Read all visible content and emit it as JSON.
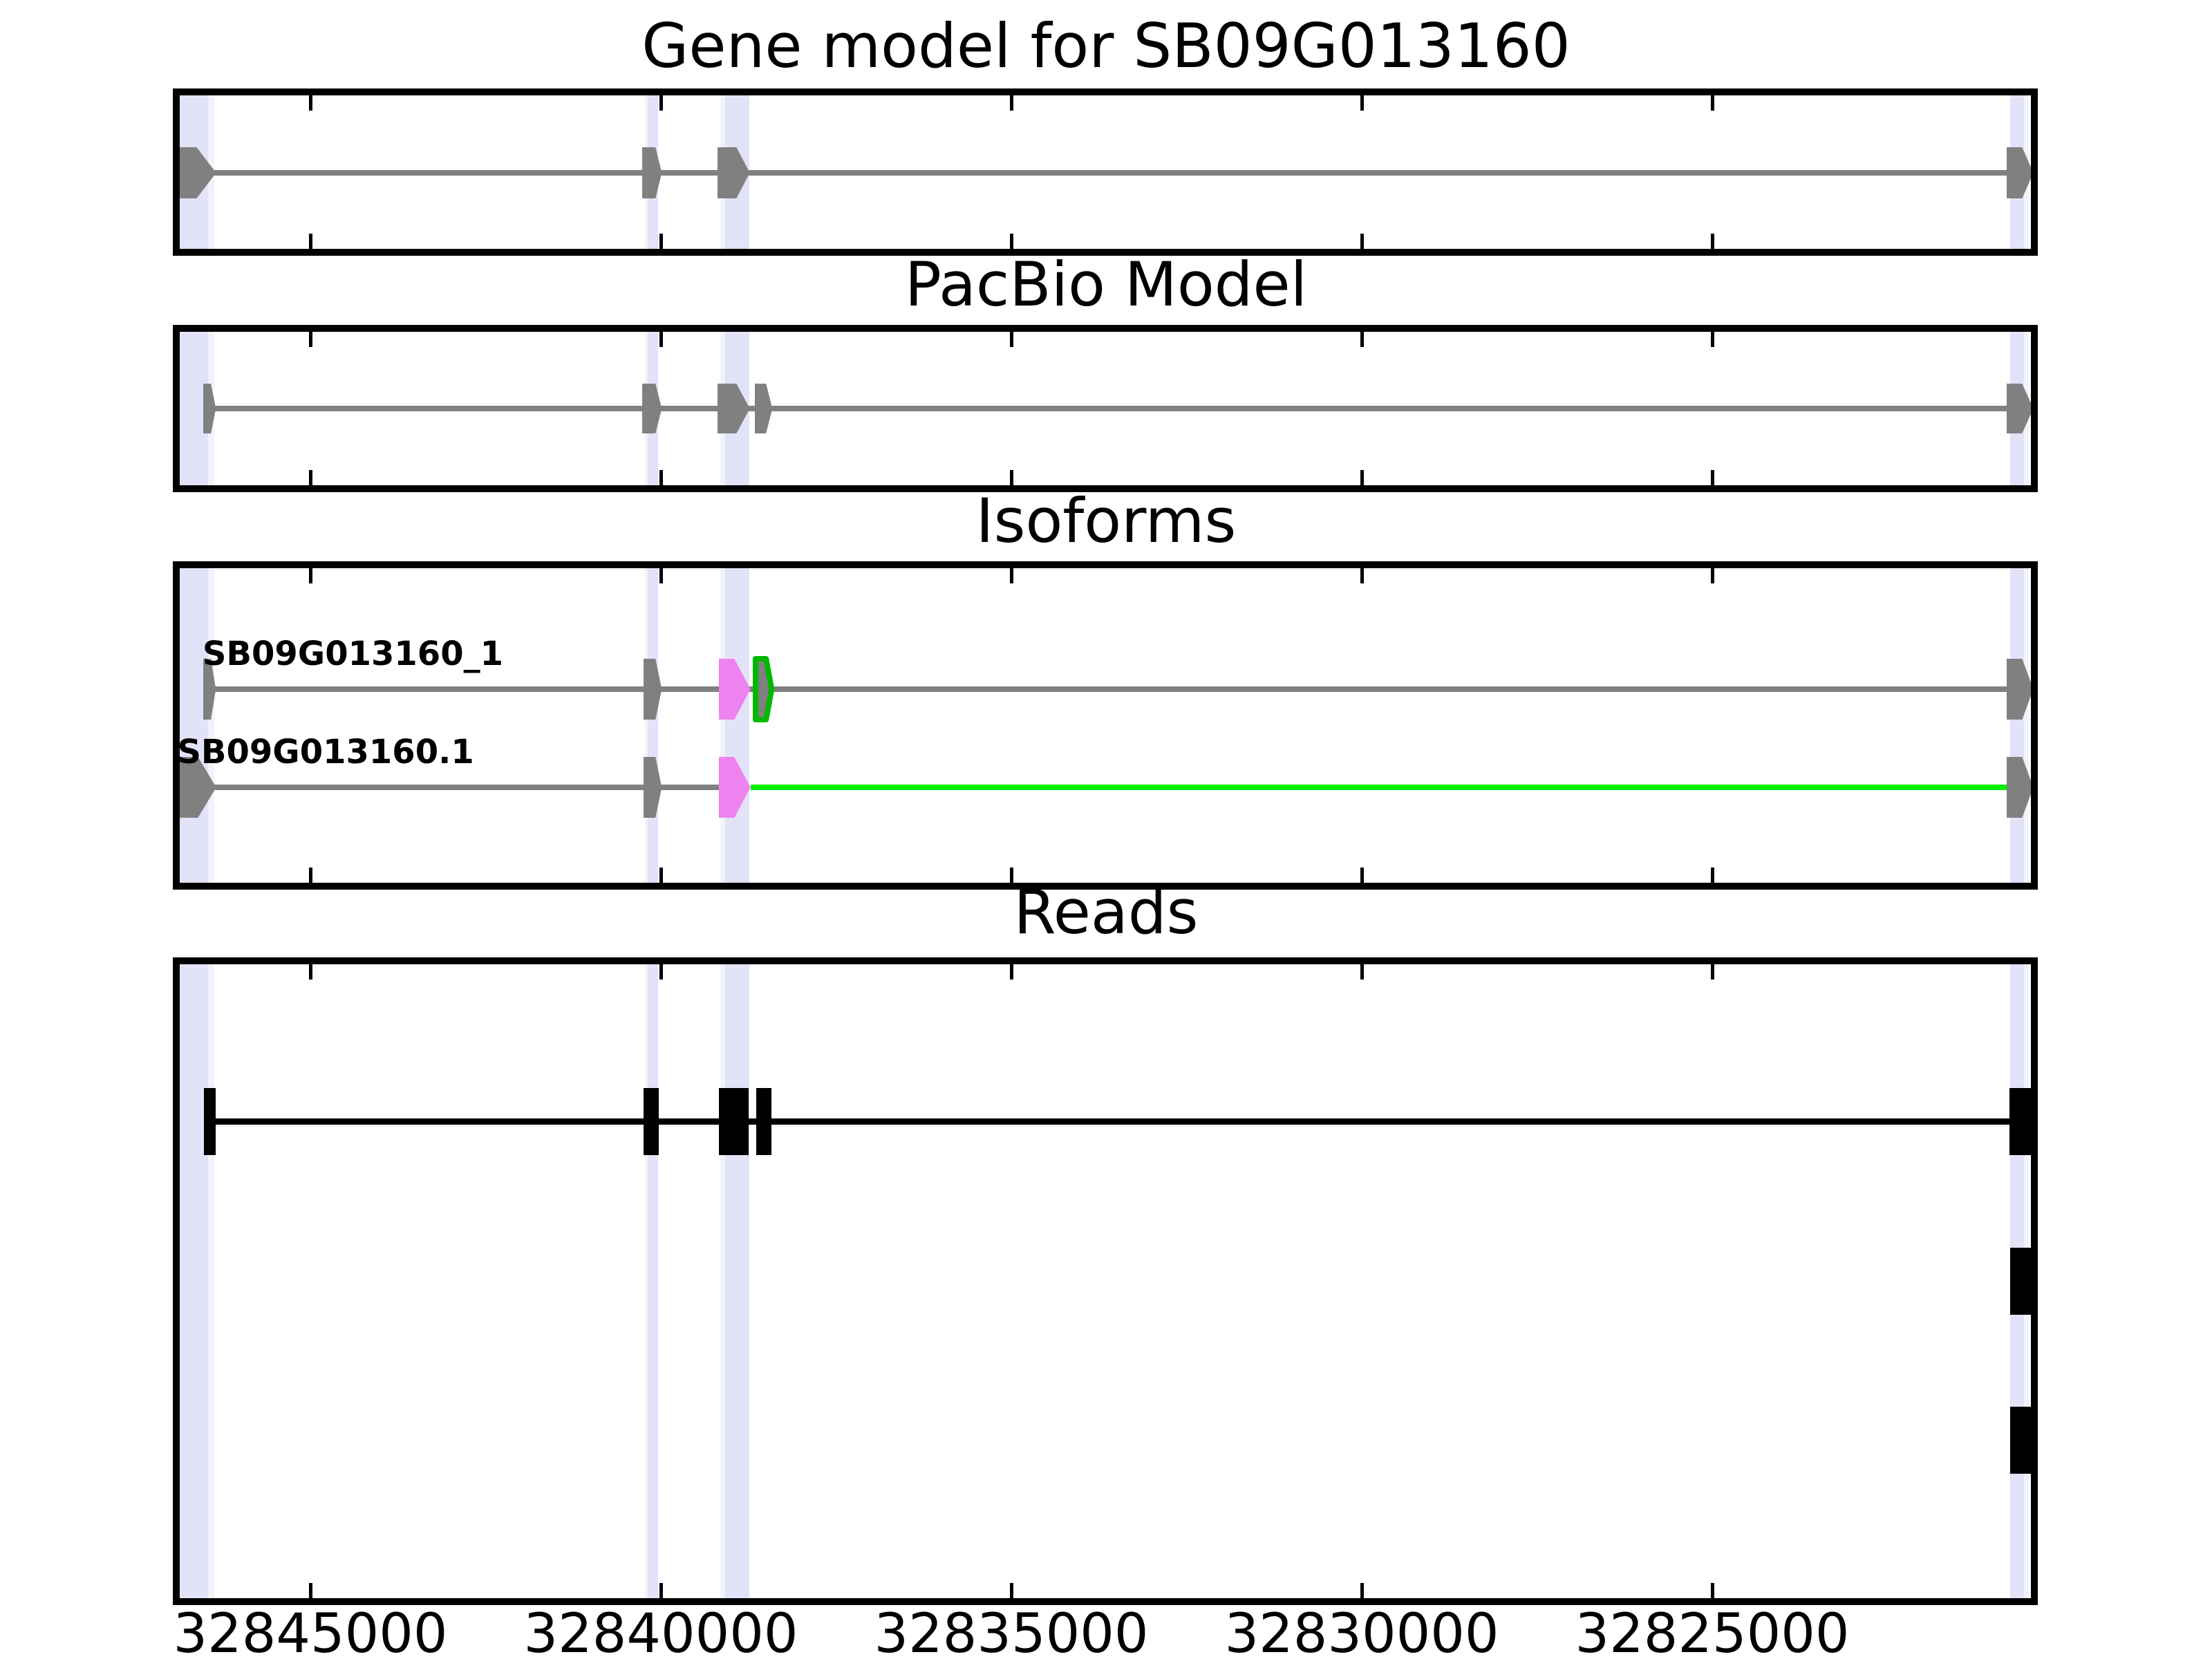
{
  "titles": {
    "gene": "Gene model for SB09G013160",
    "pacbio": "PacBio Model",
    "isoforms": "Isoforms",
    "reads": "Reads"
  },
  "colors": {
    "gray": "#808080",
    "magenta": "#EE82EE",
    "green_line": "#00EE00",
    "green_outline": "#00B800",
    "black": "#000000",
    "band_main": "#E2E2F8",
    "band_light": "#F2F2FB",
    "background": "#FFFFFF",
    "border": "#000000"
  },
  "chart_data": {
    "type": "genome-browser",
    "gene_id": "SB09G013160",
    "x_axis": {
      "unit": "bp",
      "reversed": true,
      "xlim": [
        32846900,
        32820400
      ],
      "ticks": [
        32845000,
        32840000,
        32835000,
        32830000,
        32825000
      ],
      "tick_labels": [
        "32845000",
        "32840000",
        "32835000",
        "32830000",
        "32825000"
      ]
    },
    "highlight_bands": [
      {
        "from": 32846880,
        "to": 32846460,
        "tone": "main"
      },
      {
        "from": 32846460,
        "to": 32846370,
        "tone": "light"
      },
      {
        "from": 32840230,
        "to": 32840190,
        "tone": "light"
      },
      {
        "from": 32840190,
        "to": 32840040,
        "tone": "main"
      },
      {
        "from": 32839150,
        "to": 32839080,
        "tone": "light"
      },
      {
        "from": 32839080,
        "to": 32838740,
        "tone": "main"
      },
      {
        "from": 32820750,
        "to": 32820550,
        "tone": "main"
      },
      {
        "from": 32820550,
        "to": 32820480,
        "tone": "light"
      }
    ],
    "panels": [
      {
        "key": "gene",
        "title": "Gene model for SB09G013160",
        "rows": [
          {
            "lines": [
              {
                "from": 32846620,
                "to": 32820580,
                "color": "gray",
                "width": 8
              }
            ],
            "features": [
              {
                "shape": "pentagon",
                "from": 32846870,
                "body": 32846620,
                "tip": 32846340,
                "color": "gray"
              },
              {
                "shape": "pentagon",
                "from": 32840270,
                "body": 32840080,
                "tip": 32839990,
                "color": "gray"
              },
              {
                "shape": "pentagon",
                "from": 32839190,
                "body": 32838920,
                "tip": 32838730,
                "color": "gray"
              },
              {
                "shape": "pentagon",
                "from": 32820800,
                "body": 32820580,
                "tip": 32820420,
                "color": "gray"
              }
            ]
          }
        ]
      },
      {
        "key": "pacbio",
        "title": "PacBio Model",
        "rows": [
          {
            "lines": [
              {
                "from": 32846410,
                "to": 32820580,
                "color": "gray",
                "width": 8
              }
            ],
            "features": [
              {
                "shape": "pentagon",
                "from": 32846530,
                "body": 32846420,
                "tip": 32846350,
                "color": "gray"
              },
              {
                "shape": "pentagon",
                "from": 32840270,
                "body": 32840080,
                "tip": 32839990,
                "color": "gray"
              },
              {
                "shape": "pentagon",
                "from": 32839190,
                "body": 32838920,
                "tip": 32838730,
                "color": "gray"
              },
              {
                "shape": "pentagon",
                "from": 32838660,
                "body": 32838500,
                "tip": 32838410,
                "color": "gray"
              },
              {
                "shape": "pentagon",
                "from": 32820800,
                "body": 32820580,
                "tip": 32820420,
                "color": "gray"
              }
            ]
          }
        ]
      },
      {
        "key": "isoforms",
        "title": "Isoforms",
        "rows": [
          {
            "label": "SB09G013160_1",
            "label_from": 32846540,
            "lines": [
              {
                "from": 32846410,
                "to": 32820580,
                "color": "gray",
                "width": 8
              }
            ],
            "features": [
              {
                "shape": "pentagon",
                "from": 32846530,
                "body": 32846420,
                "tip": 32846350,
                "color": "gray"
              },
              {
                "shape": "pentagon",
                "from": 32840250,
                "body": 32840080,
                "tip": 32839990,
                "color": "gray"
              },
              {
                "shape": "pentagon",
                "from": 32839170,
                "body": 32838950,
                "tip": 32838720,
                "color": "magenta"
              },
              {
                "shape": "pentagon_outline",
                "from": 32838650,
                "body": 32838500,
                "tip": 32838420,
                "color": "gray",
                "stroke": "green_outline"
              },
              {
                "shape": "pentagon",
                "from": 32820800,
                "body": 32820580,
                "tip": 32820420,
                "color": "gray"
              }
            ]
          },
          {
            "label": "SB09G013160.1",
            "label_from": 32846900,
            "lines": [
              {
                "from": 32846620,
                "to": 32839170,
                "color": "gray",
                "width": 8
              },
              {
                "from": 32838720,
                "to": 32820650,
                "color": "green_line",
                "width": 8
              }
            ],
            "features": [
              {
                "shape": "pentagon",
                "from": 32846890,
                "body": 32846600,
                "tip": 32846340,
                "color": "gray"
              },
              {
                "shape": "pentagon",
                "from": 32840250,
                "body": 32840080,
                "tip": 32839990,
                "color": "gray"
              },
              {
                "shape": "pentagon",
                "from": 32839170,
                "body": 32838950,
                "tip": 32838720,
                "color": "magenta"
              },
              {
                "shape": "pentagon",
                "from": 32820800,
                "body": 32820580,
                "tip": 32820420,
                "color": "gray"
              }
            ]
          }
        ]
      },
      {
        "key": "reads",
        "title": "Reads",
        "rows": [
          {
            "lines": [
              {
                "from": 32846440,
                "to": 32820430,
                "color": "black",
                "width": 9
              }
            ],
            "features": [
              {
                "shape": "bar",
                "from": 32846520,
                "to": 32846350,
                "color": "black"
              },
              {
                "shape": "bar",
                "from": 32840250,
                "to": 32840030,
                "color": "black"
              },
              {
                "shape": "bar",
                "from": 32839170,
                "to": 32838750,
                "color": "black"
              },
              {
                "shape": "bar",
                "from": 32838640,
                "to": 32838420,
                "color": "black"
              },
              {
                "shape": "bar",
                "from": 32820760,
                "to": 32820420,
                "color": "black"
              }
            ]
          },
          {
            "lines": [],
            "features": [
              {
                "shape": "bar",
                "from": 32820750,
                "to": 32820440,
                "color": "black"
              }
            ]
          },
          {
            "lines": [],
            "features": [
              {
                "shape": "bar",
                "from": 32820750,
                "to": 32820440,
                "color": "black"
              }
            ]
          }
        ]
      }
    ]
  }
}
